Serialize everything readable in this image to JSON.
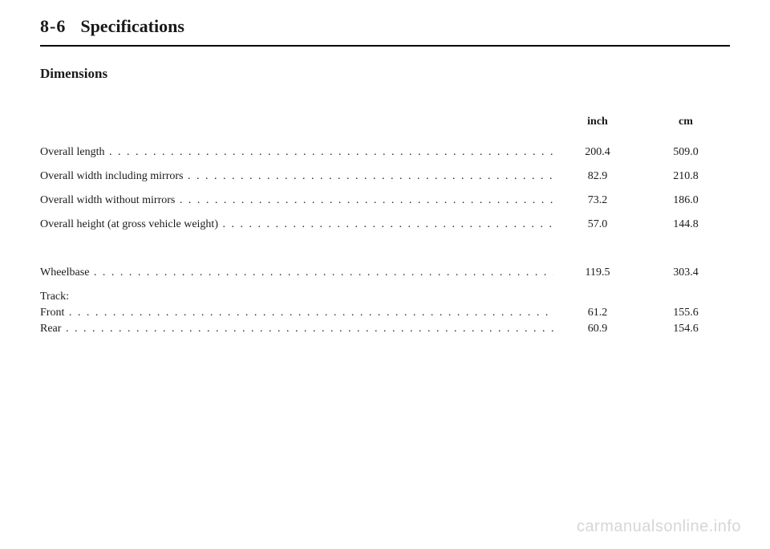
{
  "page": {
    "number": "8-6",
    "title": "Specifications"
  },
  "section": {
    "title": "Dimensions"
  },
  "columns": {
    "col1": "inch",
    "col2": "cm"
  },
  "rows": [
    {
      "label": "Overall length",
      "inch": "200.4",
      "cm": "509.0",
      "gap_after": false
    },
    {
      "label": "Overall width including mirrors",
      "inch": "82.9",
      "cm": "210.8",
      "gap_after": false
    },
    {
      "label": "Overall width without mirrors",
      "inch": "73.2",
      "cm": "186.0",
      "gap_after": false
    },
    {
      "label": "Overall height (at gross vehicle weight)",
      "inch": "57.0",
      "cm": "144.8",
      "gap_after": true
    },
    {
      "label": "Wheelbase",
      "inch": "119.5",
      "cm": "303.4",
      "gap_after": false
    }
  ],
  "track": {
    "header": "Track:",
    "rows": [
      {
        "label": "Front",
        "inch": "61.2",
        "cm": "155.6"
      },
      {
        "label": "Rear",
        "inch": "60.9",
        "cm": "154.6"
      }
    ]
  },
  "watermark": "carmanualsonline.info"
}
